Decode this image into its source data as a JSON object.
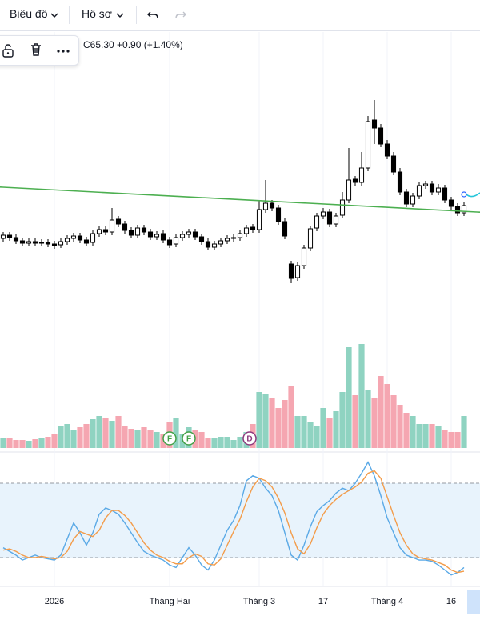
{
  "toolbar": {
    "chart": "Biêu đô",
    "profile": "Hô sơ"
  },
  "legend": "C65.30 +0.90 (+1.40%)",
  "chart_data": [
    {
      "type": "candlestick",
      "xlim": [
        -0.5,
        74.5
      ],
      "xticks": [
        {
          "value": 8,
          "label": "2026"
        },
        {
          "value": 26,
          "label": "Tháng Hai"
        },
        {
          "value": 40,
          "label": "Tháng 3"
        },
        {
          "value": 50,
          "label": "17"
        },
        {
          "value": 60,
          "label": "Tháng 4"
        },
        {
          "value": 70,
          "label": "16"
        }
      ],
      "ylim": [
        50,
        87
      ],
      "up_color": "#ffffff",
      "down_color": "#000000",
      "outline_color": "#000000",
      "open": [
        61.2,
        61.6,
        61.3,
        60.9,
        60.6,
        60.8,
        60.6,
        60.7,
        60.5,
        60.4,
        60.8,
        61.2,
        61.5,
        61.0,
        60.7,
        61.8,
        62.3,
        62.0,
        63.6,
        63.0,
        62.2,
        61.6,
        62.5,
        62.0,
        61.4,
        61.8,
        61.0,
        60.5,
        61.3,
        61.7,
        62.0,
        61.4,
        60.8,
        60.1,
        60.5,
        60.9,
        61.2,
        61.3,
        61.8,
        62.6,
        62.3,
        64.8,
        65.6,
        65.0,
        63.3,
        58.0,
        56.3,
        57.8,
        60.0,
        62.5,
        64.0,
        64.5,
        63.0,
        64.1,
        66.0,
        68.6,
        68.2,
        70.0,
        76.0,
        75.0,
        73.0,
        71.5,
        69.5,
        67.0,
        65.5,
        66.5,
        67.8,
        68.0,
        67.0,
        67.5,
        66.0,
        65.2,
        64.4
      ],
      "high": [
        62.0,
        62.0,
        61.7,
        61.3,
        61.2,
        61.2,
        61.1,
        61.1,
        60.9,
        61.2,
        61.6,
        61.9,
        61.9,
        61.4,
        62.2,
        62.7,
        62.7,
        65.0,
        64.0,
        63.4,
        62.6,
        62.9,
        62.9,
        62.4,
        62.1,
        62.2,
        61.4,
        61.7,
        62.1,
        62.4,
        62.4,
        61.8,
        61.2,
        60.9,
        61.3,
        61.6,
        61.7,
        62.2,
        62.9,
        63.0,
        66.0,
        68.5,
        66.0,
        65.4,
        63.7,
        58.4,
        58.2,
        60.4,
        62.8,
        64.4,
        65.0,
        64.9,
        64.4,
        67.0,
        72.5,
        69.0,
        72.0,
        76.5,
        78.5,
        75.5,
        73.5,
        72.0,
        70.0,
        67.4,
        66.9,
        68.2,
        68.4,
        68.4,
        68.0,
        67.9,
        66.4,
        65.6,
        65.7
      ],
      "low": [
        60.8,
        60.9,
        60.5,
        60.2,
        60.2,
        60.2,
        60.2,
        60.1,
        59.9,
        60.0,
        60.4,
        60.8,
        60.6,
        60.2,
        60.3,
        61.4,
        61.6,
        61.6,
        62.6,
        61.8,
        61.2,
        61.2,
        61.6,
        61.0,
        61.0,
        60.6,
        60.0,
        60.1,
        60.9,
        61.3,
        61.0,
        60.4,
        59.7,
        59.7,
        60.1,
        60.5,
        60.8,
        60.9,
        61.4,
        61.9,
        61.9,
        64.4,
        64.6,
        62.9,
        61.1,
        55.6,
        55.9,
        57.4,
        59.6,
        62.1,
        63.6,
        62.6,
        62.6,
        63.7,
        65.6,
        67.8,
        67.8,
        69.6,
        73.0,
        72.6,
        71.1,
        69.1,
        66.6,
        65.1,
        65.1,
        66.1,
        67.4,
        66.6,
        66.6,
        65.6,
        64.8,
        64.0,
        64.0
      ],
      "close": [
        61.6,
        61.3,
        60.9,
        60.6,
        60.8,
        60.6,
        60.7,
        60.5,
        60.3,
        60.8,
        61.2,
        61.5,
        61.0,
        60.6,
        61.8,
        62.3,
        62.0,
        63.5,
        63.0,
        62.2,
        61.6,
        62.5,
        62.0,
        61.4,
        61.7,
        61.0,
        60.4,
        61.3,
        61.7,
        62.0,
        61.4,
        60.8,
        60.1,
        60.5,
        60.9,
        61.2,
        61.3,
        61.8,
        62.5,
        62.3,
        64.8,
        65.6,
        65.0,
        63.3,
        61.5,
        56.2,
        57.8,
        60.0,
        62.4,
        64.0,
        64.5,
        63.0,
        64.0,
        66.0,
        68.5,
        68.2,
        70.0,
        75.8,
        75.0,
        73.0,
        71.5,
        69.5,
        67.0,
        65.5,
        66.5,
        67.8,
        68.0,
        67.0,
        67.5,
        66.0,
        65.2,
        64.4,
        65.3
      ],
      "trendline": {
        "x": [
          0,
          74
        ],
        "y": [
          67.6,
          64.5
        ],
        "color": "#4caf50"
      }
    },
    {
      "type": "bar",
      "ylim": [
        0,
        140
      ],
      "up_color": "#8fd3c1",
      "down_color": "#f5a6b1",
      "values": [
        12,
        12,
        10,
        10,
        9,
        11,
        12,
        14,
        18,
        28,
        30,
        22,
        26,
        30,
        36,
        40,
        38,
        34,
        40,
        28,
        24,
        22,
        26,
        22,
        20,
        18,
        32,
        38,
        18,
        26,
        22,
        20,
        12,
        12,
        14,
        14,
        10,
        14,
        20,
        30,
        70,
        68,
        62,
        50,
        60,
        78,
        40,
        40,
        32,
        28,
        50,
        38,
        46,
        70,
        126,
        66,
        130,
        72,
        62,
        90,
        80,
        66,
        54,
        44,
        40,
        30,
        30,
        30,
        28,
        22,
        20,
        20,
        40
      ],
      "events": [
        {
          "x": 26,
          "label": "F",
          "color": "#43a047"
        },
        {
          "x": 29,
          "label": "F",
          "color": "#43a047"
        },
        {
          "x": 38.5,
          "label": "D",
          "color": "#8e3a7e"
        }
      ]
    },
    {
      "type": "line",
      "ylim": [
        0,
        100
      ],
      "bands": [
        20,
        80
      ],
      "band_color": "#e8f3fc",
      "series": [
        {
          "color": "#5aa9e6",
          "values": [
            28,
            25,
            22,
            18,
            20,
            22,
            20,
            19,
            18,
            22,
            35,
            48,
            40,
            30,
            40,
            55,
            60,
            58,
            55,
            48,
            40,
            32,
            25,
            22,
            20,
            18,
            14,
            12,
            20,
            28,
            22,
            14,
            10,
            18,
            30,
            42,
            50,
            62,
            82,
            86,
            84,
            76,
            70,
            58,
            40,
            22,
            18,
            30,
            45,
            57,
            62,
            66,
            72,
            76,
            74,
            80,
            88,
            97,
            86,
            70,
            52,
            40,
            28,
            22,
            20,
            18,
            18,
            17,
            14,
            10,
            6,
            8,
            12
          ]
        },
        {
          "color": "#f39c4a",
          "values": [
            26,
            27,
            25,
            22,
            20,
            20,
            21,
            20,
            19,
            20,
            25,
            35,
            41,
            39,
            37,
            42,
            52,
            58,
            58,
            54,
            48,
            40,
            32,
            26,
            22,
            20,
            17,
            15,
            15,
            20,
            23,
            21,
            15,
            14,
            19,
            30,
            41,
            51,
            65,
            77,
            84,
            82,
            77,
            68,
            56,
            40,
            27,
            23,
            31,
            44,
            55,
            62,
            67,
            71,
            74,
            77,
            81,
            88,
            90,
            84,
            69,
            54,
            40,
            30,
            23,
            20,
            19,
            18,
            16,
            14,
            10,
            8,
            9
          ]
        }
      ]
    }
  ]
}
